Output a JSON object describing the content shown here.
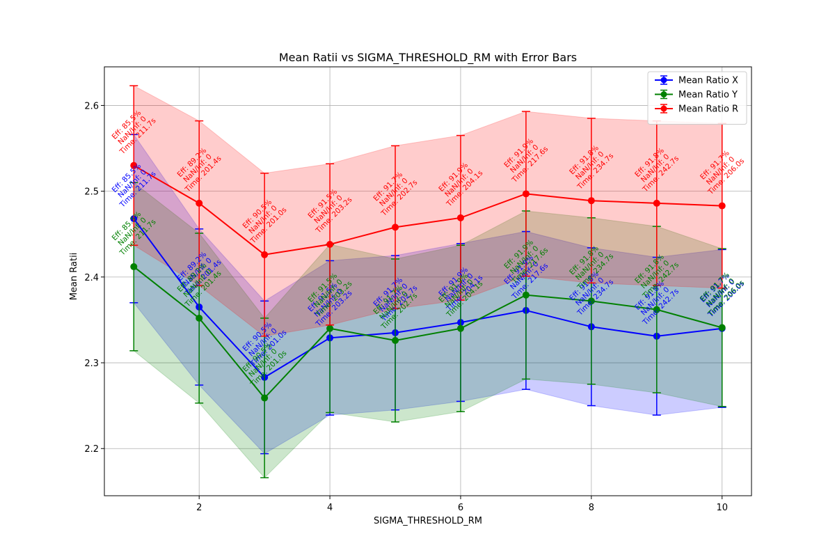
{
  "chart_data": {
    "type": "line",
    "title": "Mean Ratii vs SIGMA_THRESHOLD_RM with Error Bars",
    "xlabel": "SIGMA_THRESHOLD_RM",
    "ylabel": "Mean Ratii",
    "x": [
      1,
      2,
      3,
      4,
      5,
      6,
      7,
      8,
      9,
      10
    ],
    "xlim": [
      0.55,
      10.45
    ],
    "ylim": [
      2.145,
      2.645
    ],
    "xticks": [
      2,
      4,
      6,
      8,
      10
    ],
    "yticks": [
      2.2,
      2.3,
      2.4,
      2.5,
      2.6
    ],
    "grid": true,
    "legend_position": "top-right",
    "series": [
      {
        "name": "Mean Ratio X",
        "color": "#0000ff",
        "values": [
          2.468,
          2.365,
          2.283,
          2.329,
          2.335,
          2.347,
          2.361,
          2.342,
          2.331,
          2.34
        ],
        "errors": [
          0.098,
          0.091,
          0.089,
          0.09,
          0.09,
          0.092,
          0.092,
          0.092,
          0.092,
          0.092
        ]
      },
      {
        "name": "Mean Ratio Y",
        "color": "#008000",
        "values": [
          2.412,
          2.352,
          2.259,
          2.34,
          2.326,
          2.34,
          2.379,
          2.372,
          2.362,
          2.341
        ],
        "errors": [
          0.098,
          0.099,
          0.093,
          0.098,
          0.095,
          0.097,
          0.098,
          0.097,
          0.097,
          0.092
        ]
      },
      {
        "name": "Mean Ratio R",
        "color": "#ff0000",
        "values": [
          2.53,
          2.486,
          2.426,
          2.438,
          2.458,
          2.469,
          2.497,
          2.489,
          2.486,
          2.483
        ],
        "errors": [
          0.093,
          0.096,
          0.095,
          0.094,
          0.095,
          0.096,
          0.096,
          0.096,
          0.096,
          0.096
        ]
      }
    ],
    "annotations": {
      "eff": [
        "85.5%",
        "89.2%",
        "90.5%",
        "91.5%",
        "91.7%",
        "91.9%",
        "91.9%",
        "91.8%",
        "91.8%",
        "91.7%"
      ],
      "naninf": [
        "0",
        "0",
        "0",
        "0",
        "0",
        "0",
        "0",
        "0",
        "0",
        "0"
      ],
      "time": [
        "211.7s",
        "201.4s",
        "201.0s",
        "203.2s",
        "202.7s",
        "204.1s",
        "217.6s",
        "234.7s",
        "242.7s",
        "206.0s"
      ],
      "eff_prefix": "Eff: ",
      "naninf_prefix": "NaN/Inf: ",
      "time_prefix": "Time: "
    }
  }
}
